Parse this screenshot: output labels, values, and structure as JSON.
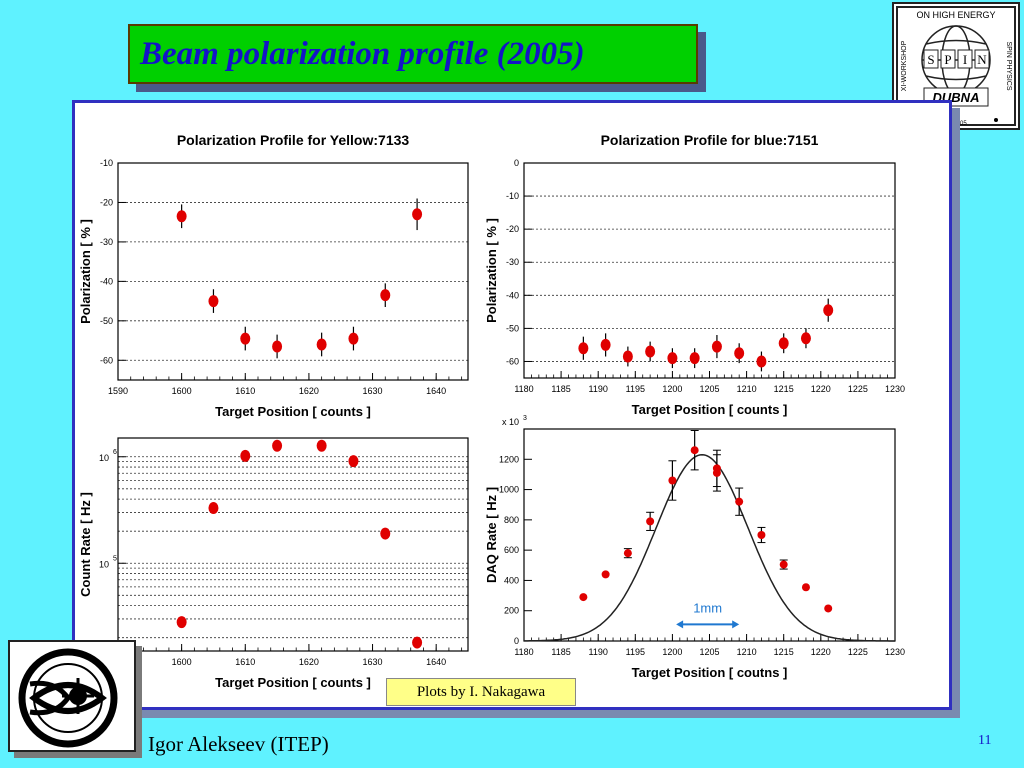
{
  "slide": {
    "title": "Beam polarization profile (2005)",
    "author": "Igor Alekseev (ITEP)",
    "page_number": "11",
    "credit": "Plots by I. Nakagawa",
    "logo_top_right": {
      "top_text": "ON HIGH ENERGY",
      "left_text": "XI-WORKSHOP",
      "right_text": "SPIN PHYSICS",
      "center_letters": [
        "S",
        "P",
        "I",
        "N"
      ],
      "bottom_text": "DUBNA",
      "year_fragment": "05"
    },
    "colors": {
      "background": "#5ff2ff",
      "title_box": "#00d000",
      "title_text": "#1414c8",
      "marker": "#e00000",
      "frame": "#3030c0"
    }
  },
  "chart_data": [
    {
      "type": "scatter",
      "title": "Polarization Profile for Yellow:7133",
      "xlabel": "Target Position [ counts ]",
      "ylabel": "Polarization [ % ]",
      "xlim": [
        1590,
        1645
      ],
      "ylim": [
        -65,
        -10
      ],
      "xticks": [
        1590,
        1600,
        1610,
        1620,
        1630,
        1640
      ],
      "yticks": [
        -60,
        -50,
        -40,
        -30,
        -20,
        -10
      ],
      "grid": "y",
      "x": [
        1600,
        1605,
        1610,
        1615,
        1622,
        1627,
        1632,
        1637
      ],
      "y": [
        -23.5,
        -45,
        -54.5,
        -56.5,
        -56,
        -54.5,
        -43.5,
        -23
      ],
      "yerr": [
        3,
        3,
        3,
        3,
        3,
        3,
        3,
        4
      ]
    },
    {
      "type": "scatter",
      "title": "Polarization Profile for blue:7151",
      "xlabel": "Target Position [ counts ]",
      "ylabel": "Polarization [ % ]",
      "xlim": [
        1180,
        1230
      ],
      "ylim": [
        -65,
        0
      ],
      "xticks": [
        1180,
        1185,
        1190,
        1195,
        1200,
        1205,
        1210,
        1215,
        1220,
        1225,
        1230
      ],
      "yticks": [
        -60,
        -50,
        -40,
        -30,
        -20,
        -10,
        0
      ],
      "grid": "y",
      "x": [
        1188,
        1191,
        1194,
        1197,
        1200,
        1203,
        1206,
        1209,
        1212,
        1215,
        1218,
        1221
      ],
      "y": [
        -56,
        -55,
        -58.5,
        -57,
        -59,
        -59,
        -55.5,
        -57.5,
        -60,
        -54.5,
        -53,
        -44.5
      ],
      "yerr": [
        3.5,
        3.5,
        3,
        3,
        3,
        3,
        3.5,
        3,
        3,
        3,
        3,
        3.5
      ]
    },
    {
      "type": "scatter",
      "title": "",
      "xlabel": "Target Position [ counts ]",
      "ylabel": "Count Rate [ Hz ]",
      "xlim": [
        1590,
        1645
      ],
      "ylim": [
        15000,
        1500000
      ],
      "yscale": "log",
      "xticks": [
        1590,
        1600,
        1610,
        1620,
        1630,
        1640
      ],
      "ytick_labels": [
        {
          "value": 100000,
          "base": "10",
          "exp": "5"
        },
        {
          "value": 1000000,
          "base": "10",
          "exp": "6"
        }
      ],
      "grid": "y",
      "x": [
        1600,
        1605,
        1610,
        1615,
        1622,
        1627,
        1632,
        1637
      ],
      "y": [
        28000,
        330000,
        1020000,
        1270000,
        1270000,
        910000,
        190000,
        18000
      ]
    },
    {
      "type": "scatter",
      "title": "",
      "xlabel": "Target Position [ coutns ]",
      "ylabel": "DAQ Rate [ Hz ]",
      "multiplier": {
        "base": "x 10",
        "exp": "3"
      },
      "xlim": [
        1180,
        1230
      ],
      "ylim": [
        0,
        1400
      ],
      "xticks": [
        1180,
        1185,
        1190,
        1195,
        1200,
        1205,
        1210,
        1215,
        1220,
        1225,
        1230
      ],
      "yticks": [
        0,
        200,
        400,
        600,
        800,
        1000,
        1200
      ],
      "grid": "none",
      "x": [
        1188,
        1191,
        1194,
        1197,
        1200,
        1203,
        1206,
        1206,
        1209,
        1212,
        1215,
        1218,
        1221
      ],
      "y": [
        290,
        440,
        580,
        790,
        1060,
        1260,
        1140,
        1110,
        920,
        700,
        505,
        355,
        215
      ],
      "yerr": [
        0,
        0,
        30,
        60,
        130,
        130,
        120,
        120,
        90,
        50,
        30,
        0,
        0
      ],
      "fit": {
        "type": "gaussian",
        "amplitude": 1230,
        "mean": 1204,
        "sigma": 6.2
      },
      "annotation": {
        "label": "1mm",
        "x_from": 1200.5,
        "x_to": 1209,
        "y": 110
      }
    }
  ]
}
